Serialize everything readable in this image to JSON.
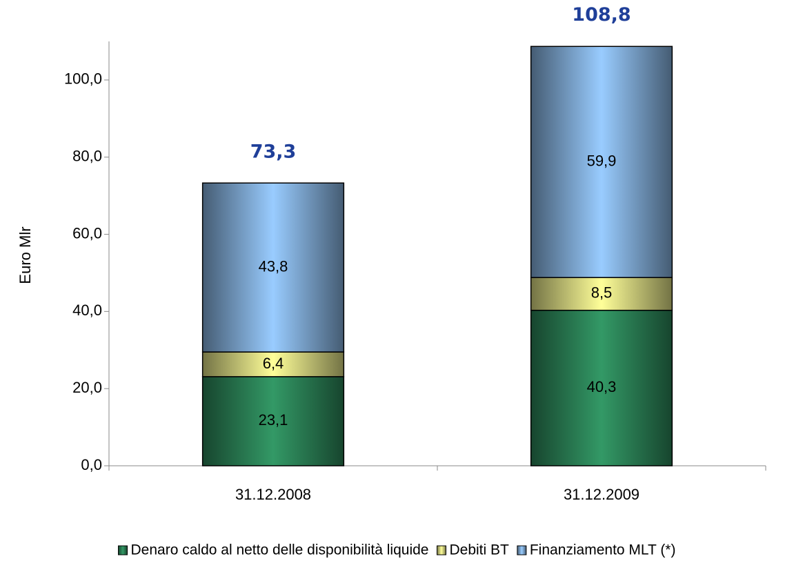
{
  "chart_data": {
    "type": "stacked_bar",
    "y_axis_label": "Euro Mlr",
    "categories": [
      "31.12.2008",
      "31.12.2009"
    ],
    "series": [
      {
        "name": "Denaro caldo al netto delle disponibilità liquide",
        "color": "#339966",
        "values": [
          23.1,
          40.3
        ],
        "value_labels": [
          "23,1",
          "40,3"
        ]
      },
      {
        "name": "Debiti BT",
        "color": "#ffff99",
        "values": [
          6.4,
          8.5
        ],
        "value_labels": [
          "6,4",
          "8,5"
        ]
      },
      {
        "name": "Finanziamento MLT (*)",
        "color": "#99ccff",
        "values": [
          43.8,
          59.9
        ],
        "value_labels": [
          "43,8",
          "59,9"
        ]
      }
    ],
    "totals": [
      73.3,
      108.8
    ],
    "total_labels": [
      "73,3",
      "108,8"
    ],
    "ylim": [
      0,
      110
    ],
    "yticks": [
      {
        "value": 0,
        "label": "0,0"
      },
      {
        "value": 20,
        "label": "20,0"
      },
      {
        "value": 40,
        "label": "40,0"
      },
      {
        "value": 60,
        "label": "60,0"
      },
      {
        "value": 80,
        "label": "80,0"
      },
      {
        "value": 100,
        "label": "100,0"
      }
    ],
    "legend": "bottom"
  }
}
